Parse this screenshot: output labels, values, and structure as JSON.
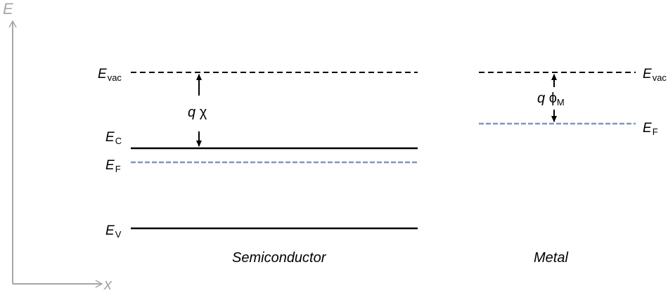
{
  "axes": {
    "y_label": "E",
    "x_label": "x"
  },
  "semiconductor": {
    "caption": "Semiconductor",
    "levels": {
      "vac": {
        "main": "E",
        "sub": "vac"
      },
      "c": {
        "main": "E",
        "sub": "C"
      },
      "f": {
        "main": "E",
        "sub": "F"
      },
      "v": {
        "main": "E",
        "sub": "V"
      }
    },
    "gap_label": {
      "q": "q",
      "symbol": "χ"
    }
  },
  "metal": {
    "caption": "Metal",
    "levels": {
      "vac": {
        "main": "E",
        "sub": "vac"
      },
      "f": {
        "main": "E",
        "sub": "F"
      }
    },
    "gap_label": {
      "q": "q",
      "symbol": "ϕ",
      "sub": "M"
    }
  },
  "colors": {
    "axis": "#a6a6a6",
    "fermi": "#7f97bf",
    "line": "#000000"
  }
}
